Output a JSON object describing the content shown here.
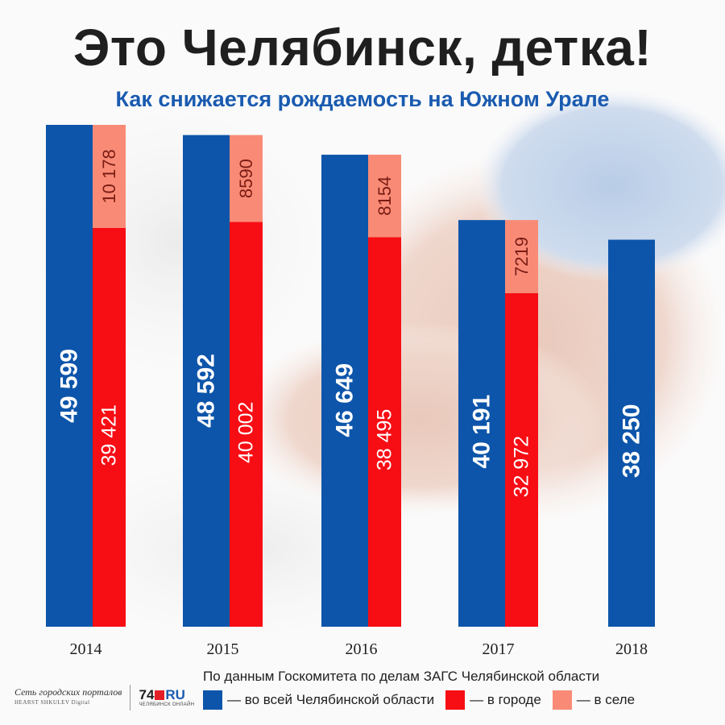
{
  "header": {
    "title": "Это Челябинск, детка!",
    "subtitle": "Как снижается рождаемость на Южном Урале"
  },
  "chart_data": {
    "type": "bar",
    "stacked_secondary": true,
    "categories": [
      "2014",
      "2015",
      "2016",
      "2017",
      "2018"
    ],
    "series": [
      {
        "name": "— во всей Челябинской области",
        "color": "#0d55aa",
        "values": [
          49599,
          48592,
          46649,
          40191,
          38250
        ],
        "labels": [
          "49 599",
          "48 592",
          "46 649",
          "40 191",
          "38 250"
        ]
      },
      {
        "name": "— в городе",
        "color": "#f70d14",
        "values": [
          39421,
          40002,
          38495,
          32972,
          null
        ],
        "labels": [
          "39 421",
          "40 002",
          "38 495",
          "32 972",
          ""
        ]
      },
      {
        "name": "— в селе",
        "color": "#f98b76",
        "values": [
          10178,
          8590,
          8154,
          7219,
          null
        ],
        "labels": [
          "10 178",
          "8590",
          "8154",
          "7219",
          ""
        ]
      }
    ],
    "ylim": [
      0,
      49599
    ],
    "grid": false,
    "legend_position": "bottom-right"
  },
  "source": "По данным Госкомитета по делам ЗАГС Челябинской области",
  "logos": {
    "network_name": "Сеть городских порталов",
    "network_sub": "HEARST SHKULEV Digital",
    "portal_num": "74",
    "portal_ru": "RU",
    "portal_sub": "ЧЕЛЯБИНСК ОНЛАЙН"
  }
}
